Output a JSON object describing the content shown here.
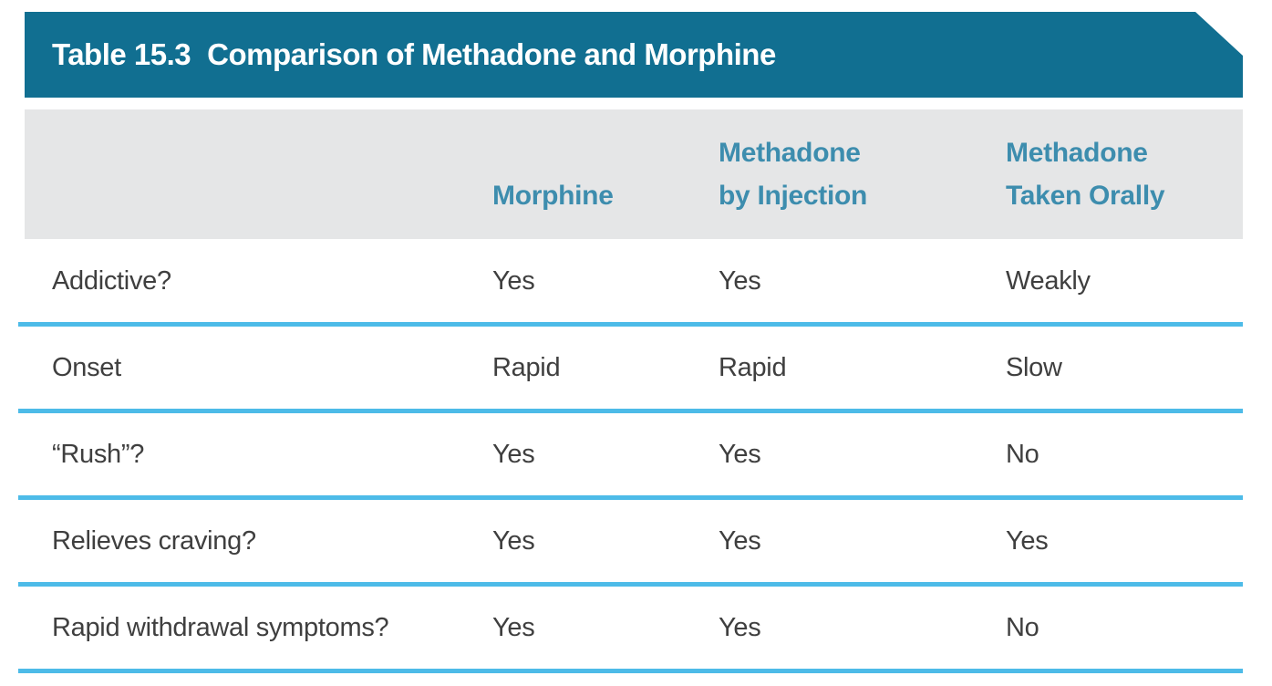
{
  "table": {
    "title_label": "Table 15.3",
    "title_text": "Comparison of Methadone and Morphine",
    "col_headers": {
      "morphine": {
        "line1": "",
        "line2": "Morphine"
      },
      "methadone_injection": {
        "line1": "Methadone",
        "line2": "by Injection"
      },
      "methadone_oral": {
        "line1": "Methadone",
        "line2": "Taken Orally"
      }
    },
    "rows": [
      {
        "label": "Addictive?",
        "morphine": "Yes",
        "methadone_injection": "Yes",
        "methadone_oral": "Weakly"
      },
      {
        "label": "Onset",
        "morphine": "Rapid",
        "methadone_injection": "Rapid",
        "methadone_oral": "Slow"
      },
      {
        "label": "“Rush”?",
        "morphine": "Yes",
        "methadone_injection": "Yes",
        "methadone_oral": "No"
      },
      {
        "label": "Relieves craving?",
        "morphine": "Yes",
        "methadone_injection": "Yes",
        "methadone_oral": "Yes"
      },
      {
        "label": "Rapid withdrawal symptoms?",
        "morphine": "Yes",
        "methadone_injection": "Yes",
        "methadone_oral": "No"
      }
    ],
    "colors": {
      "title_bar": "#116f91",
      "title_text": "#ffffff",
      "header_band_bg": "#e5e6e7",
      "header_text": "#3d8dae",
      "row_divider": "#4dbbe8",
      "body_text": "#3f3f3f"
    }
  }
}
